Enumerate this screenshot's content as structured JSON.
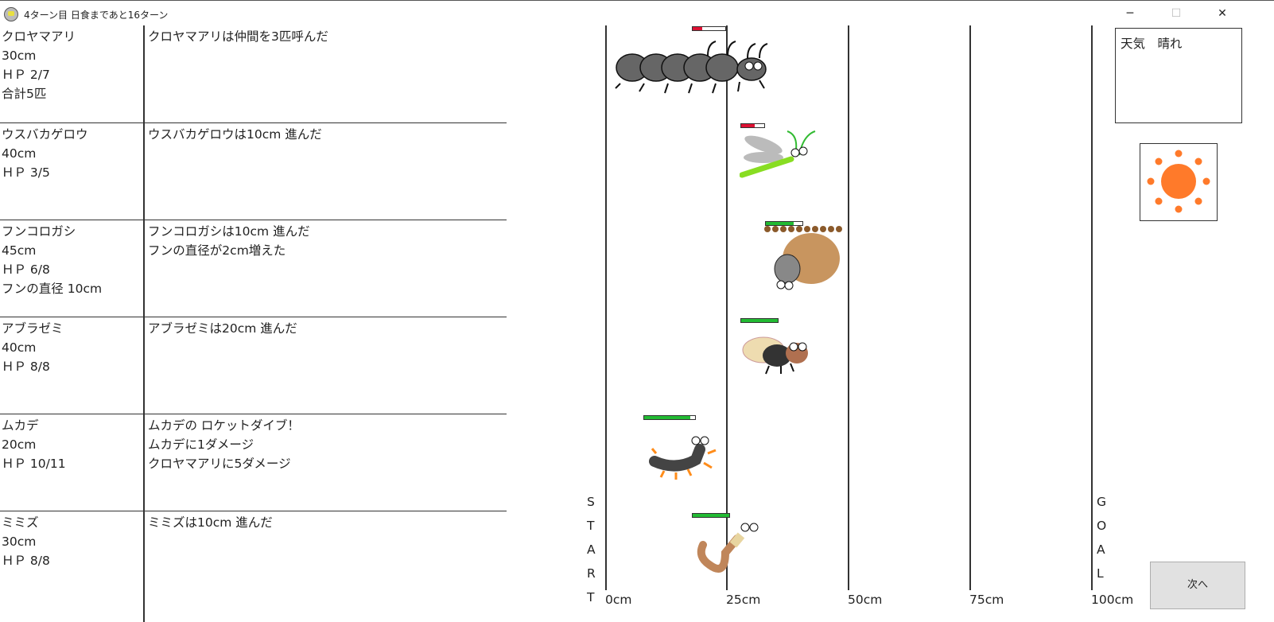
{
  "window": {
    "title": "4ターン目 日食まであと16ターン",
    "minimize": "─",
    "maximize": "☐",
    "close": "✕"
  },
  "insects": [
    {
      "name": "クロヤマアリ",
      "stats": [
        "30cm",
        "ＨＰ 2/7",
        "合計5匹"
      ],
      "log": [
        "クロヤマアリは仲間を3匹呼んだ"
      ],
      "hp": 2,
      "hp_max": 7
    },
    {
      "name": "ウスバカゲロウ",
      "stats": [
        "40cm",
        "ＨＰ 3/5"
      ],
      "log": [
        "ウスバカゲロウは10cm 進んだ"
      ],
      "hp": 3,
      "hp_max": 5
    },
    {
      "name": "フンコロガシ",
      "stats": [
        "45cm",
        "ＨＰ 6/8",
        "フンの直径 10cm"
      ],
      "log": [
        "フンコロガシは10cm 進んだ",
        "フンの直径が2cm増えた"
      ],
      "hp": 6,
      "hp_max": 8
    },
    {
      "name": "アブラゼミ",
      "stats": [
        "40cm",
        "ＨＰ 8/8"
      ],
      "log": [
        "アブラゼミは20cm 進んだ"
      ],
      "hp": 8,
      "hp_max": 8
    },
    {
      "name": "ムカデ",
      "stats": [
        "20cm",
        "ＨＰ 10/11"
      ],
      "log": [
        "ムカデの ロケットダイブ！",
        "ムカデに1ダメージ",
        "クロヤマアリに5ダメージ"
      ],
      "hp": 10,
      "hp_max": 11
    },
    {
      "name": "ミミズ",
      "stats": [
        "30cm",
        "ＨＰ 8/8"
      ],
      "log": [
        "ミミズは10cm 進んだ"
      ],
      "hp": 8,
      "hp_max": 8
    }
  ],
  "track": {
    "ticks": [
      "0cm",
      "25cm",
      "50cm",
      "75cm",
      "100cm"
    ],
    "start_letters": [
      "S",
      "T",
      "A",
      "R",
      "T"
    ],
    "goal_letters": [
      "G",
      "O",
      "A",
      "L"
    ]
  },
  "weather": {
    "label": "天気　晴れ",
    "icon": "sun-icon"
  },
  "next_button": "次へ",
  "colors": {
    "hp_high": "#22bb33",
    "hp_low": "#dd1133",
    "sun": "#ff7a2a"
  }
}
